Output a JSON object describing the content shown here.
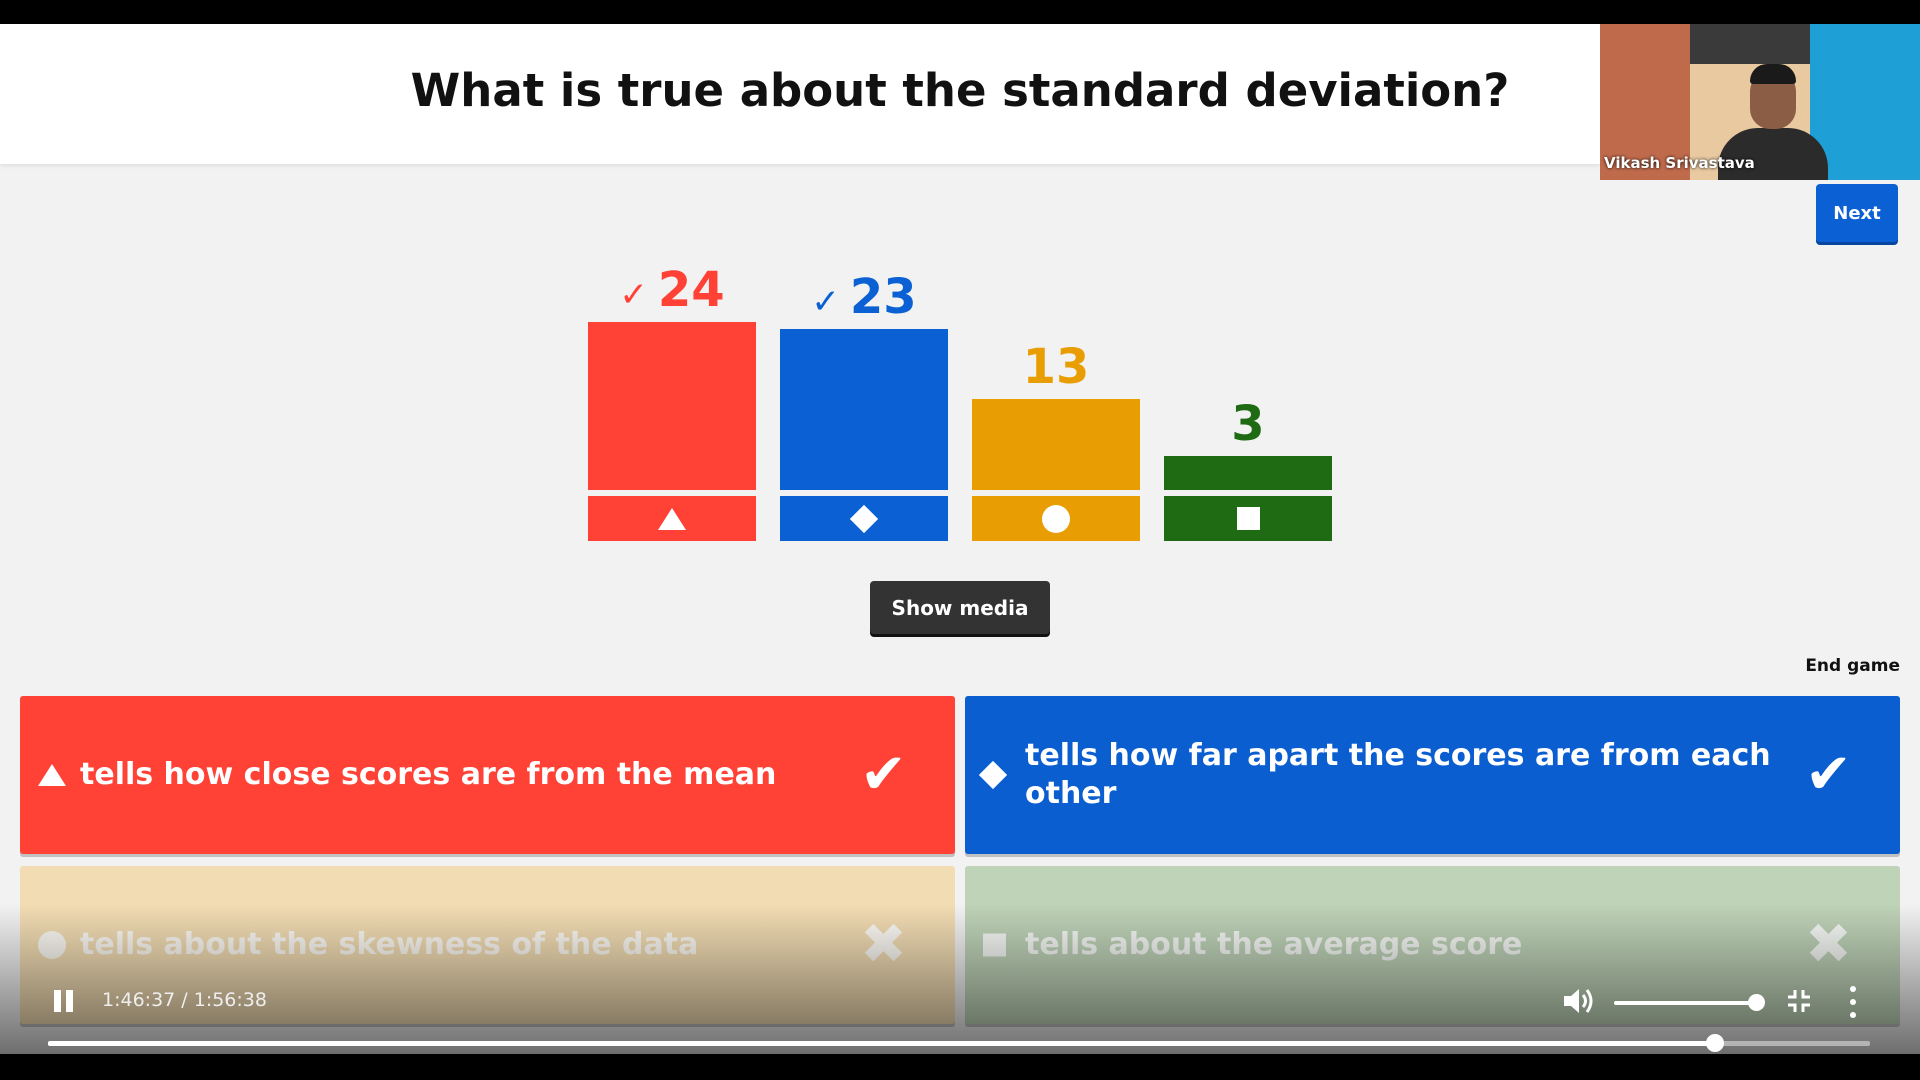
{
  "question": "What is true about the standard deviation?",
  "participant": {
    "name": "Vikash Srivastava"
  },
  "buttons": {
    "next": "Next",
    "show_media": "Show media",
    "end_game": "End game"
  },
  "results": [
    {
      "count": "24",
      "correct": true,
      "color": "#ff4136",
      "shape": "triangle-icon"
    },
    {
      "count": "23",
      "correct": true,
      "color": "#0b61d3",
      "shape": "diamond-icon"
    },
    {
      "count": "13",
      "correct": false,
      "color": "#e89e02",
      "shape": "circle-icon"
    },
    {
      "count": "3",
      "correct": false,
      "color": "#1f6b13",
      "shape": "square-icon"
    }
  ],
  "check_glyph": "✓",
  "answers": [
    {
      "text": "tells how close scores are from the mean",
      "correct": true,
      "color": "#ff4136",
      "shape": "triangle-icon"
    },
    {
      "text": "tells how far apart the scores are from each other",
      "correct": true,
      "color": "#0b5ed0",
      "shape": "diamond-icon"
    },
    {
      "text": "tells about the skewness of the data",
      "correct": false,
      "color": "#f2dcb3",
      "shape": "circle-icon"
    },
    {
      "text": "tells about the average score",
      "correct": false,
      "color": "#bfd3b8",
      "shape": "square-icon"
    }
  ],
  "marks": {
    "correct": "✔",
    "wrong": "✖"
  },
  "player": {
    "time": "1:46:37 / 1:56:38",
    "progress": 0.9147,
    "volume": 1.0
  }
}
